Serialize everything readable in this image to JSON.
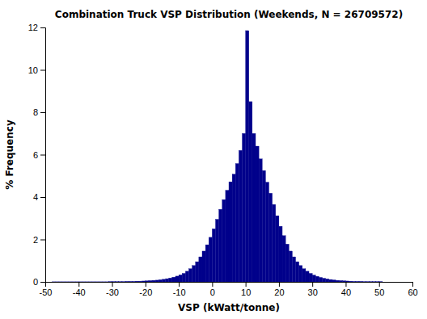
{
  "chart_data": {
    "type": "histogram",
    "title": "Combination Truck VSP Distribution (Weekends, N = 26709572)",
    "xlabel": "VSP (kWatt/tonne)",
    "ylabel": "% Frequency",
    "bins": [
      -48,
      -47,
      -46,
      -45,
      -44,
      -43,
      -42,
      -41,
      -40,
      -39,
      -38,
      -37,
      -36,
      -35,
      -34,
      -33,
      -32,
      -31,
      -30,
      -29,
      -28,
      -27,
      -26,
      -25,
      -24,
      -23,
      -22,
      -21,
      -20,
      -19,
      -18,
      -17,
      -16,
      -15,
      -14,
      -13,
      -12,
      -11,
      -10,
      -9,
      -8,
      -7,
      -6,
      -5,
      -4,
      -3,
      -2,
      -1,
      0,
      1,
      2,
      3,
      4,
      5,
      6,
      7,
      8,
      9,
      10,
      11,
      12,
      13,
      14,
      15,
      16,
      17,
      18,
      19,
      20,
      21,
      22,
      23,
      24,
      25,
      26,
      27,
      28,
      29,
      30,
      31,
      32,
      33,
      34,
      35,
      36,
      37,
      38,
      39,
      40,
      41,
      42,
      43,
      44,
      45,
      46,
      47,
      48,
      49,
      50,
      51
    ],
    "values": [
      0.005,
      0.005,
      0.005,
      0.005,
      0.005,
      0.005,
      0.005,
      0.005,
      0.005,
      0.005,
      0.005,
      0.005,
      0.005,
      0.005,
      0.005,
      0.005,
      0.005,
      0.01,
      0.01,
      0.01,
      0.01,
      0.01,
      0.02,
      0.02,
      0.02,
      0.03,
      0.03,
      0.04,
      0.05,
      0.06,
      0.07,
      0.08,
      0.1,
      0.12,
      0.15,
      0.18,
      0.22,
      0.27,
      0.33,
      0.4,
      0.5,
      0.62,
      0.77,
      0.95,
      1.18,
      1.45,
      1.75,
      2.1,
      2.5,
      2.95,
      3.42,
      3.88,
      4.32,
      4.72,
      5.08,
      5.58,
      6.2,
      7.0,
      11.85,
      8.5,
      7.0,
      6.4,
      5.8,
      5.25,
      4.7,
      4.18,
      3.65,
      3.12,
      2.62,
      2.18,
      1.78,
      1.45,
      1.18,
      0.95,
      0.77,
      0.62,
      0.5,
      0.4,
      0.32,
      0.26,
      0.21,
      0.17,
      0.14,
      0.11,
      0.09,
      0.07,
      0.06,
      0.05,
      0.04,
      0.03,
      0.02,
      0.02,
      0.02,
      0.01,
      0.01,
      0.01,
      0.01,
      0.01,
      0.01
    ],
    "color": "#00008B",
    "xlim": [
      -50,
      60
    ],
    "ylim": [
      0,
      12
    ],
    "xticks": [
      -50,
      -40,
      -30,
      -20,
      -10,
      0,
      10,
      20,
      30,
      40,
      50,
      60
    ],
    "yticks": [
      0,
      2,
      4,
      6,
      8,
      10,
      12
    ]
  }
}
